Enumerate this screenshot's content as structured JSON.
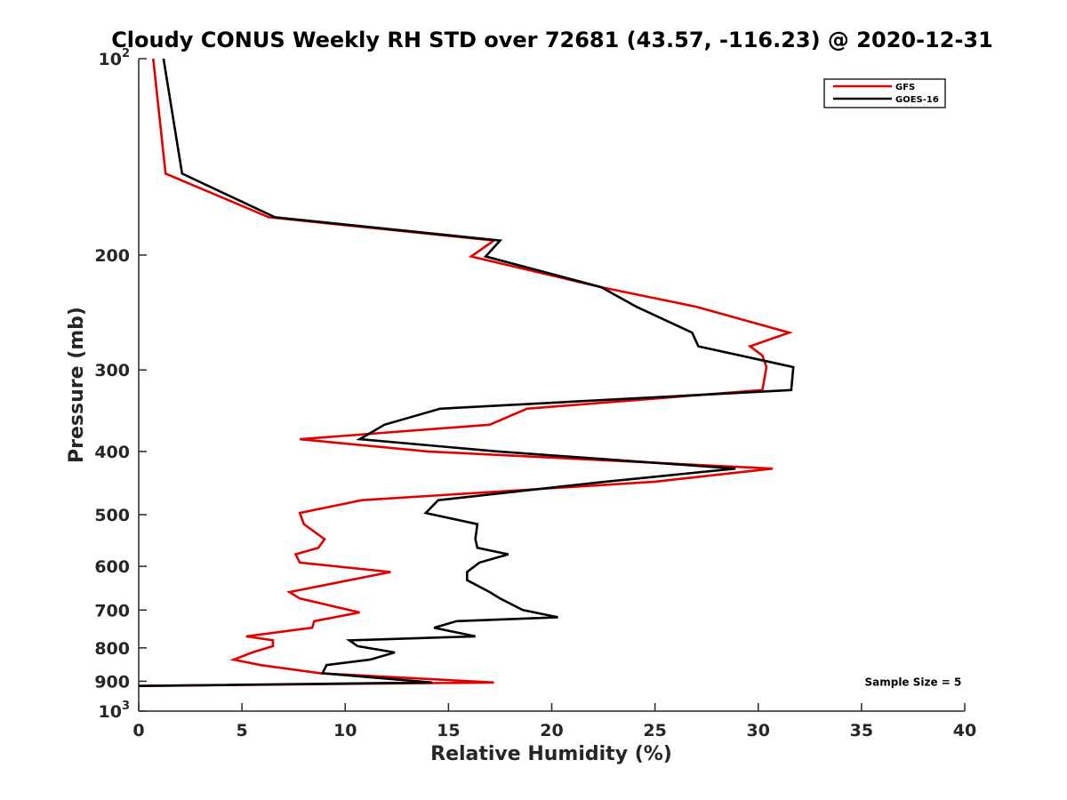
{
  "chart_data": {
    "type": "line",
    "title": "Cloudy CONUS Weekly RH STD over 72681 (43.57, -116.23) @ 2020-12-31",
    "xlabel": "Relative Humidity (%)",
    "ylabel": "Pressure (mb)",
    "xlim": [
      0,
      40
    ],
    "ylim": [
      100,
      1000
    ],
    "y_scale": "log",
    "y_reversed": true,
    "x_ticks": [
      "0",
      "5",
      "10",
      "15",
      "20",
      "25",
      "30",
      "35",
      "40"
    ],
    "y_ticks": [
      {
        "value": 100,
        "label": "10",
        "sup": "2"
      },
      {
        "value": 200,
        "label": "200"
      },
      {
        "value": 300,
        "label": "300"
      },
      {
        "value": 400,
        "label": "400"
      },
      {
        "value": 500,
        "label": "500"
      },
      {
        "value": 600,
        "label": "600"
      },
      {
        "value": 700,
        "label": "700"
      },
      {
        "value": 800,
        "label": "800"
      },
      {
        "value": 900,
        "label": "900"
      },
      {
        "value": 1000,
        "label": "10",
        "sup": "3"
      }
    ],
    "grid": false,
    "legend_position": "top-right",
    "series": [
      {
        "name": "GFS",
        "color": "#e00000",
        "points": [
          [
            0.7,
            100
          ],
          [
            1.3,
            150
          ],
          [
            6.3,
            175
          ],
          [
            17.2,
            190
          ],
          [
            16.1,
            201
          ],
          [
            22.4,
            224
          ],
          [
            27.0,
            240
          ],
          [
            31.5,
            263
          ],
          [
            29.6,
            276
          ],
          [
            30.2,
            285
          ],
          [
            30.4,
            297
          ],
          [
            30.2,
            322
          ],
          [
            18.8,
            344
          ],
          [
            17.0,
            364
          ],
          [
            7.8,
            383
          ],
          [
            14.0,
            400
          ],
          [
            30.7,
            425
          ],
          [
            25.0,
            445
          ],
          [
            10.8,
            475
          ],
          [
            7.8,
            497
          ],
          [
            8.0,
            517
          ],
          [
            9.0,
            545
          ],
          [
            8.7,
            562
          ],
          [
            7.6,
            575
          ],
          [
            7.8,
            592
          ],
          [
            12.2,
            612
          ],
          [
            10.2,
            630
          ],
          [
            7.3,
            657
          ],
          [
            7.8,
            672
          ],
          [
            10.7,
            706
          ],
          [
            8.5,
            728
          ],
          [
            8.4,
            745
          ],
          [
            5.2,
            768
          ],
          [
            6.5,
            779
          ],
          [
            6.5,
            795
          ],
          [
            5.5,
            813
          ],
          [
            4.6,
            834
          ],
          [
            5.9,
            850
          ],
          [
            8.8,
            875
          ],
          [
            17.2,
            904
          ],
          [
            0,
            915
          ]
        ]
      },
      {
        "name": "GOES-16",
        "color": "#000000",
        "points": [
          [
            1.2,
            100
          ],
          [
            2.1,
            150
          ],
          [
            6.6,
            175
          ],
          [
            17.5,
            190
          ],
          [
            16.8,
            201
          ],
          [
            22.4,
            224
          ],
          [
            24.1,
            240
          ],
          [
            26.8,
            263
          ],
          [
            27.1,
            276
          ],
          [
            31.7,
            297
          ],
          [
            31.6,
            322
          ],
          [
            14.6,
            344
          ],
          [
            11.9,
            364
          ],
          [
            10.7,
            383
          ],
          [
            17.4,
            400
          ],
          [
            28.9,
            425
          ],
          [
            22.6,
            445
          ],
          [
            14.5,
            475
          ],
          [
            13.9,
            497
          ],
          [
            16.4,
            517
          ],
          [
            16.3,
            545
          ],
          [
            16.4,
            562
          ],
          [
            17.9,
            575
          ],
          [
            16.5,
            592
          ],
          [
            15.9,
            612
          ],
          [
            15.9,
            630
          ],
          [
            17.0,
            657
          ],
          [
            17.5,
            672
          ],
          [
            18.6,
            700
          ],
          [
            20.3,
            718
          ],
          [
            15.4,
            728
          ],
          [
            14.3,
            745
          ],
          [
            16.3,
            768
          ],
          [
            10.2,
            779
          ],
          [
            10.6,
            795
          ],
          [
            12.4,
            813
          ],
          [
            11.2,
            834
          ],
          [
            9.1,
            850
          ],
          [
            8.9,
            875
          ],
          [
            14.2,
            904
          ],
          [
            0,
            915
          ]
        ]
      }
    ],
    "annotations": [
      {
        "text": "Sample Size = 5",
        "x": 37.5,
        "y": 900
      }
    ]
  }
}
